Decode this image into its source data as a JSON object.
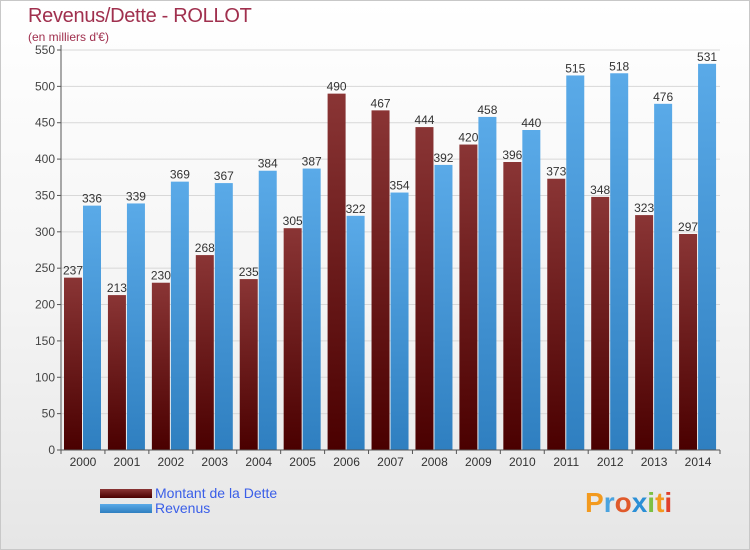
{
  "title": "Revenus/Dette - ROLLOT",
  "subtitle": "(en milliers d'€)",
  "colors": {
    "dette_top": "#8a3535",
    "dette_bottom": "#4a0000",
    "revenus_top": "#5aaae8",
    "revenus_bottom": "#2f7fc0"
  },
  "chart_data": {
    "type": "bar",
    "categories": [
      "2000",
      "2001",
      "2002",
      "2003",
      "2004",
      "2005",
      "2006",
      "2007",
      "2008",
      "2009",
      "2010",
      "2011",
      "2012",
      "2013",
      "2014"
    ],
    "series": [
      {
        "name": "Montant de la Dette",
        "values": [
          237,
          213,
          230,
          268,
          235,
          305,
          490,
          467,
          444,
          420,
          396,
          373,
          348,
          323,
          297
        ]
      },
      {
        "name": "Revenus",
        "values": [
          336,
          339,
          369,
          367,
          384,
          387,
          322,
          354,
          392,
          458,
          440,
          515,
          518,
          476,
          531
        ]
      }
    ],
    "ylim": [
      0,
      550
    ],
    "yticks": [
      0,
      50,
      100,
      150,
      200,
      250,
      300,
      350,
      400,
      450,
      500,
      550
    ],
    "grid": true,
    "legend": "bottom-left"
  },
  "legend": {
    "items": [
      {
        "label": "Montant de la Dette"
      },
      {
        "label": "Revenus"
      }
    ]
  },
  "logo": {
    "letters": [
      "P",
      "r",
      "o",
      "x",
      "i",
      "t",
      "i"
    ],
    "colors": [
      "#f39a1e",
      "#4aa3df",
      "#e05a2b",
      "#2b8fd6",
      "#7cc043",
      "#f39a1e",
      "#e0402b"
    ]
  }
}
